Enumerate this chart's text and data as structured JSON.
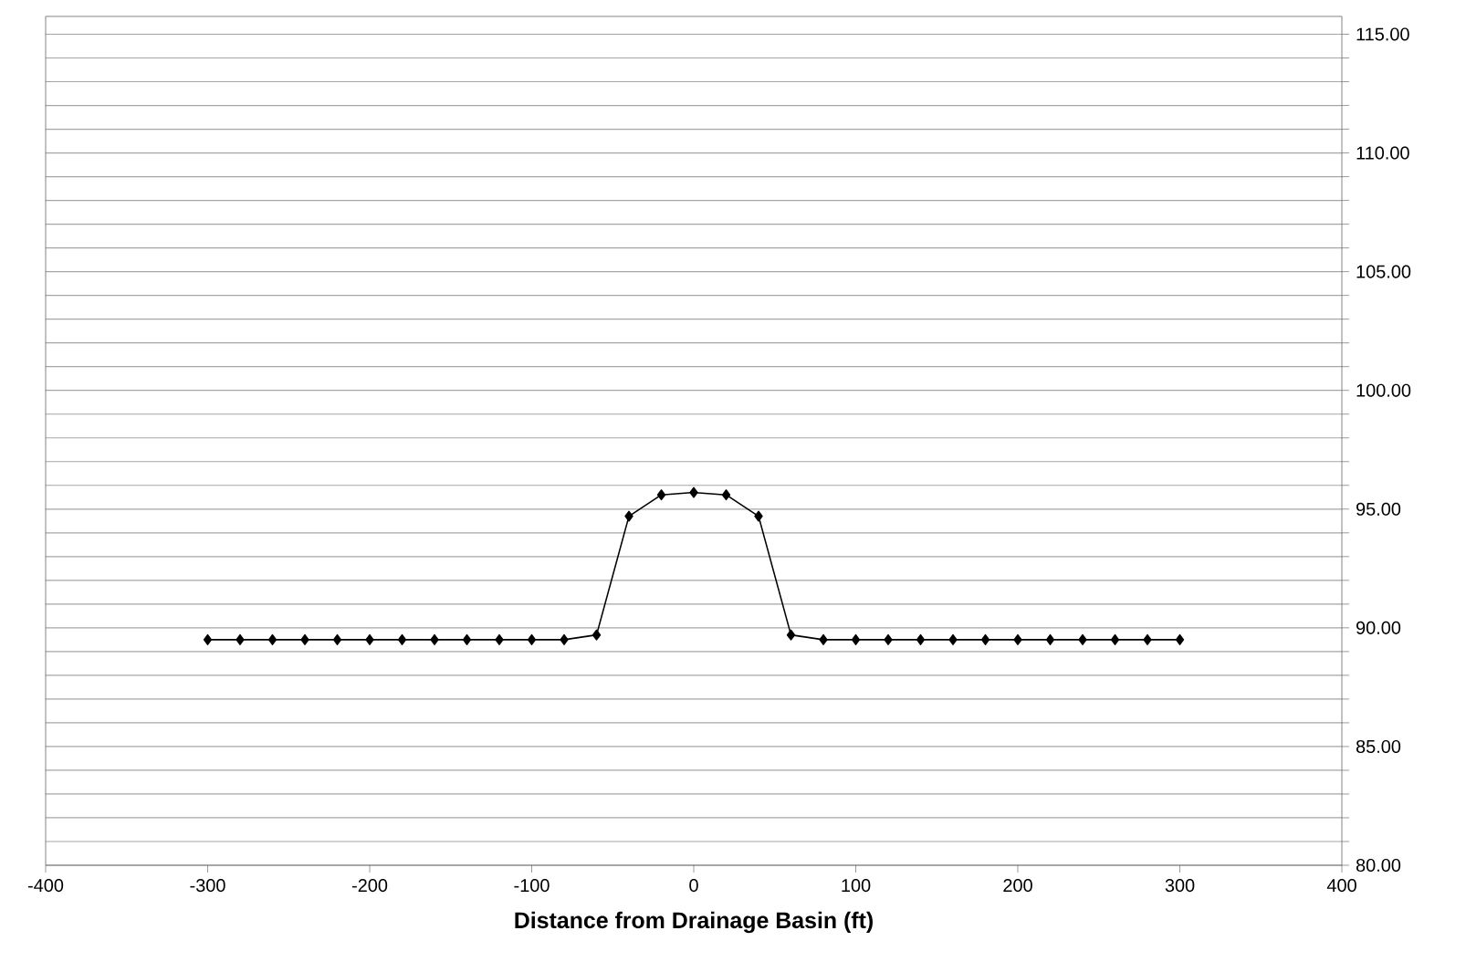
{
  "chart_data": {
    "type": "line",
    "xlabel": "Distance from Drainage Basin (ft)",
    "x": [
      -300,
      -280,
      -260,
      -240,
      -220,
      -200,
      -180,
      -160,
      -140,
      -120,
      -100,
      -80,
      -60,
      -40,
      -20,
      0,
      20,
      40,
      60,
      80,
      100,
      120,
      140,
      160,
      180,
      200,
      220,
      240,
      260,
      280,
      300
    ],
    "series": [
      {
        "color": "#000000",
        "values": [
          89.5,
          89.5,
          89.5,
          89.5,
          89.5,
          89.5,
          89.5,
          89.5,
          89.5,
          89.5,
          89.5,
          89.5,
          89.7,
          94.7,
          95.6,
          95.7,
          95.6,
          94.7,
          89.7,
          89.5,
          89.5,
          89.5,
          89.5,
          89.5,
          89.5,
          89.5,
          89.5,
          89.5,
          89.5,
          89.5,
          89.5
        ]
      }
    ],
    "xlim": [
      -400,
      400
    ],
    "xticks": [
      -400,
      -300,
      -200,
      -100,
      0,
      100,
      200,
      300,
      400
    ],
    "ylim": [
      80,
      115.75
    ],
    "yticks": [
      {
        "value": 80,
        "label": "80.00"
      },
      {
        "value": 81,
        "label": null
      },
      {
        "value": 82,
        "label": null
      },
      {
        "value": 83,
        "label": null
      },
      {
        "value": 84,
        "label": null
      },
      {
        "value": 85,
        "label": "85.00"
      },
      {
        "value": 86,
        "label": null
      },
      {
        "value": 87,
        "label": null
      },
      {
        "value": 88,
        "label": null
      },
      {
        "value": 89,
        "label": null
      },
      {
        "value": 90,
        "label": "90.00"
      },
      {
        "value": 91,
        "label": null
      },
      {
        "value": 92,
        "label": null
      },
      {
        "value": 93,
        "label": null
      },
      {
        "value": 94,
        "label": null
      },
      {
        "value": 95,
        "label": "95.00"
      },
      {
        "value": 96,
        "label": null
      },
      {
        "value": 97,
        "label": null
      },
      {
        "value": 98,
        "label": null
      },
      {
        "value": 99,
        "label": null
      },
      {
        "value": 100,
        "label": "100.00"
      },
      {
        "value": 101,
        "label": null
      },
      {
        "value": 102,
        "label": null
      },
      {
        "value": 103,
        "label": null
      },
      {
        "value": 104,
        "label": null
      },
      {
        "value": 105,
        "label": "105.00"
      },
      {
        "value": 106,
        "label": null
      },
      {
        "value": 107,
        "label": null
      },
      {
        "value": 108,
        "label": null
      },
      {
        "value": 109,
        "label": null
      },
      {
        "value": 110,
        "label": "110.00"
      },
      {
        "value": 111,
        "label": null
      },
      {
        "value": 112,
        "label": null
      },
      {
        "value": 113,
        "label": null
      },
      {
        "value": 114,
        "label": null
      },
      {
        "value": 115,
        "label": "115.00"
      }
    ],
    "grid": "y",
    "marker": "diamond",
    "line_style": "solid"
  }
}
